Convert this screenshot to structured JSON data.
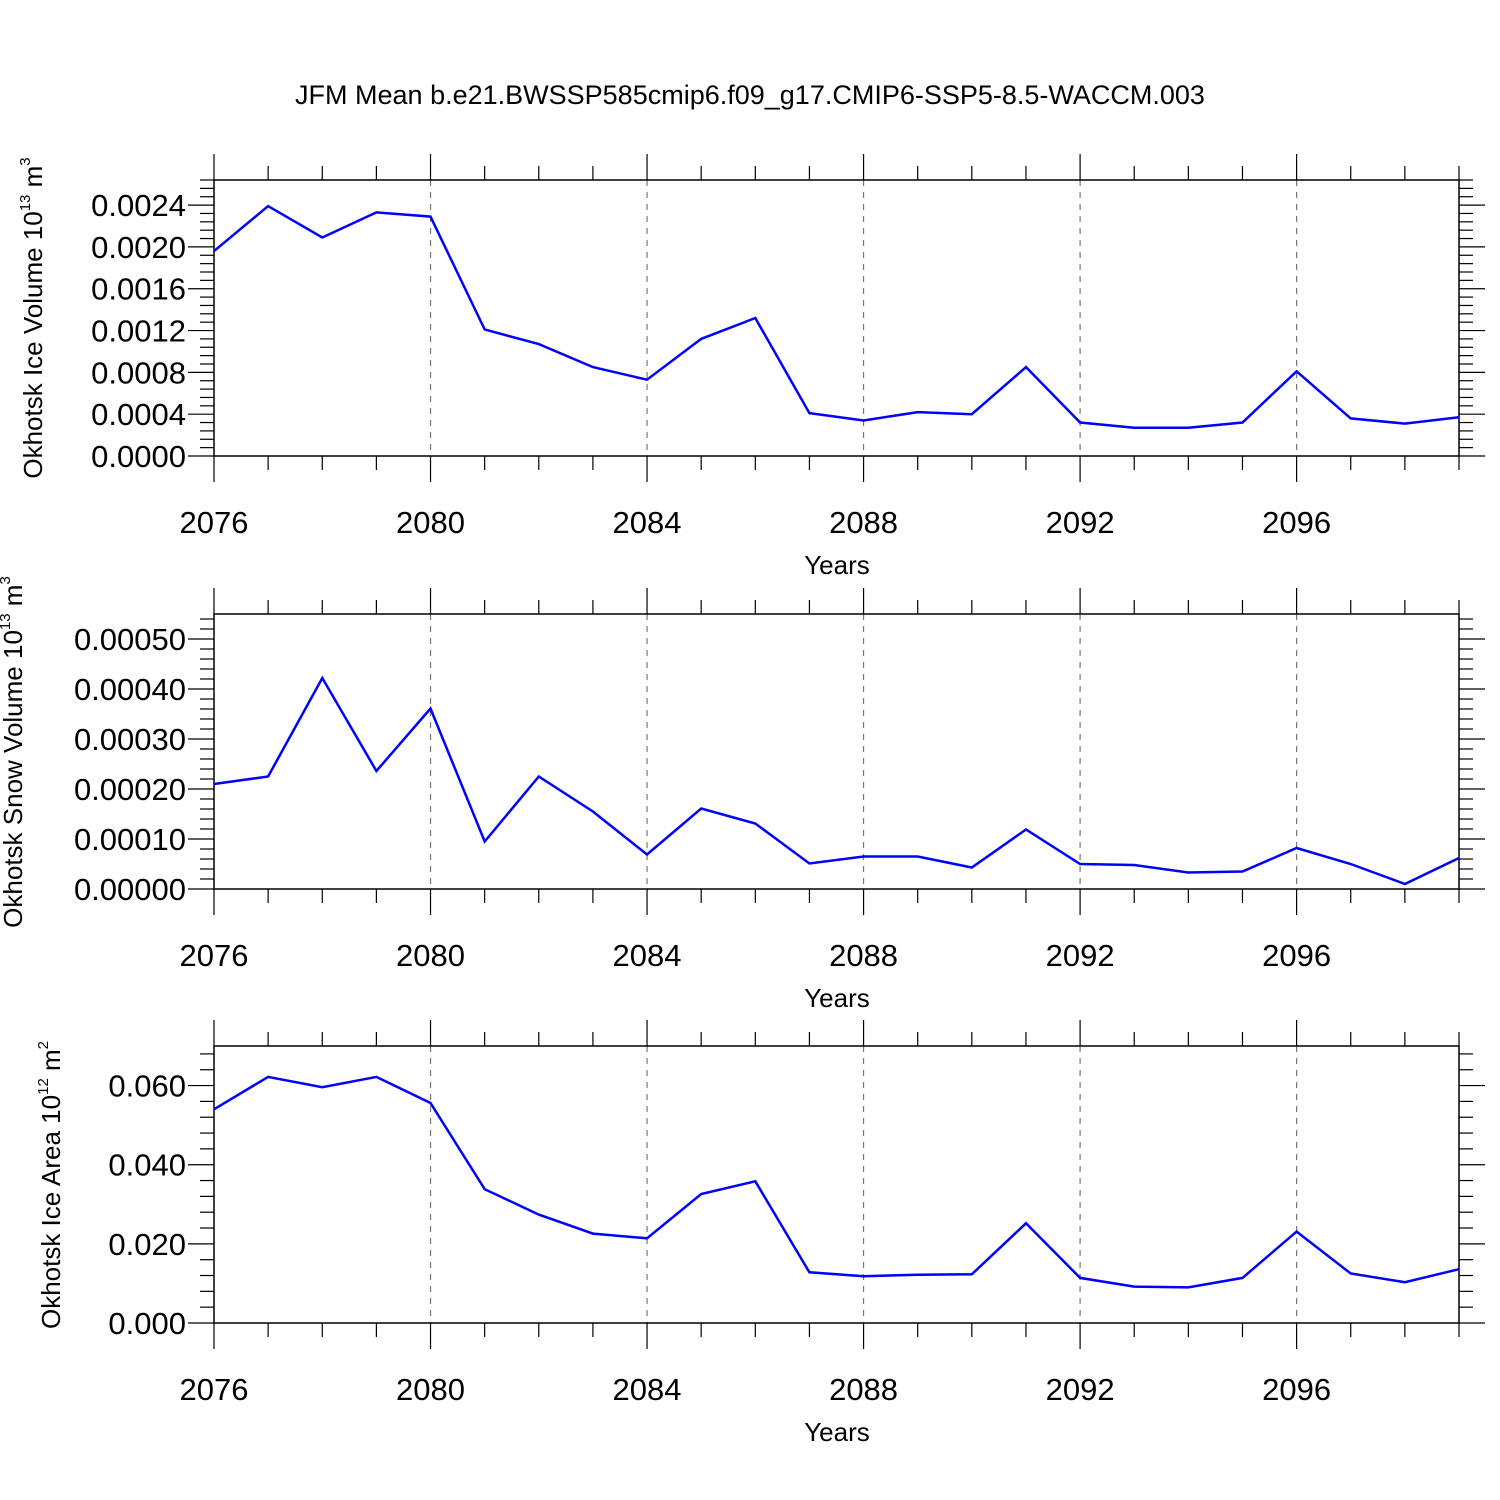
{
  "figure": {
    "title": "JFM Mean b.e21.BWSSP585cmip6.f09_g17.CMIP6-SSP5-8.5-WACCM.003"
  },
  "colors": {
    "line": "#0000ff",
    "axis": "#000000",
    "grid": "#777777"
  },
  "chart_data": [
    {
      "type": "line",
      "ylabel": {
        "main": "Okhotsk Ice Volume 10",
        "exp": "13",
        "unit": " m",
        "unit_exp": "3"
      },
      "xlabel": "Years",
      "xlim": [
        2076,
        2099
      ],
      "ylim": [
        0.0,
        0.00264
      ],
      "yticks": [
        0.0,
        0.0004,
        0.0008,
        0.0012,
        0.0016,
        0.002,
        0.0024
      ],
      "ytick_labels": [
        "0.0000",
        "0.0004",
        "0.0008",
        "0.0012",
        "0.0016",
        "0.0020",
        "0.0024"
      ],
      "xticks": [
        2076,
        2080,
        2084,
        2088,
        2092,
        2096
      ],
      "xtick_labels": [
        "2076",
        "2080",
        "2084",
        "2088",
        "2092",
        "2096"
      ],
      "grid": "vertical-dashed",
      "series": [
        {
          "name": "Okhotsk Ice Volume",
          "x": [
            2076,
            2077,
            2078,
            2079,
            2080,
            2081,
            2082,
            2083,
            2084,
            2085,
            2086,
            2087,
            2088,
            2089,
            2090,
            2091,
            2092,
            2093,
            2094,
            2095,
            2096,
            2097,
            2098,
            2099
          ],
          "values": [
            0.00196,
            0.00239,
            0.00209,
            0.00233,
            0.00229,
            0.00121,
            0.00107,
            0.00085,
            0.00073,
            0.00112,
            0.00132,
            0.00041,
            0.00034,
            0.00042,
            0.0004,
            0.00085,
            0.00032,
            0.00027,
            0.00027,
            0.00032,
            0.00081,
            0.00036,
            0.00031,
            0.00037
          ]
        }
      ]
    },
    {
      "type": "line",
      "ylabel": {
        "main": "Okhotsk Snow Volume 10",
        "exp": "13",
        "unit": " m",
        "unit_exp": "3"
      },
      "xlabel": "Years",
      "xlim": [
        2076,
        2099
      ],
      "ylim": [
        0.0,
        0.00055
      ],
      "yticks": [
        0.0,
        0.0001,
        0.0002,
        0.0003,
        0.0004,
        0.0005
      ],
      "ytick_labels": [
        "0.00000",
        "0.00010",
        "0.00020",
        "0.00030",
        "0.00040",
        "0.00050"
      ],
      "xticks": [
        2076,
        2080,
        2084,
        2088,
        2092,
        2096
      ],
      "xtick_labels": [
        "2076",
        "2080",
        "2084",
        "2088",
        "2092",
        "2096"
      ],
      "grid": "vertical-dashed",
      "series": [
        {
          "name": "Okhotsk Snow Volume",
          "x": [
            2076,
            2077,
            2078,
            2079,
            2080,
            2081,
            2082,
            2083,
            2084,
            2085,
            2086,
            2087,
            2088,
            2089,
            2090,
            2091,
            2092,
            2093,
            2094,
            2095,
            2096,
            2097,
            2098,
            2099
          ],
          "values": [
            0.00021,
            0.000225,
            0.000422,
            0.000236,
            0.000361,
            9.5e-05,
            0.000225,
            0.000155,
            6.9e-05,
            0.000161,
            0.000131,
            5.1e-05,
            6.5e-05,
            6.5e-05,
            4.3e-05,
            0.000119,
            5e-05,
            4.8e-05,
            3.3e-05,
            3.5e-05,
            8.2e-05,
            5e-05,
            1e-05,
            6.2e-05
          ]
        }
      ]
    },
    {
      "type": "line",
      "ylabel": {
        "main": "Okhotsk Ice Area 10",
        "exp": "12",
        "unit": " m",
        "unit_exp": "2"
      },
      "xlabel": "Years",
      "xlim": [
        2076,
        2099
      ],
      "ylim": [
        0.0,
        0.07
      ],
      "yticks": [
        0.0,
        0.02,
        0.04,
        0.06
      ],
      "ytick_labels": [
        "0.000",
        "0.020",
        "0.040",
        "0.060"
      ],
      "xticks": [
        2076,
        2080,
        2084,
        2088,
        2092,
        2096
      ],
      "xtick_labels": [
        "2076",
        "2080",
        "2084",
        "2088",
        "2092",
        "2096"
      ],
      "grid": "vertical-dashed",
      "series": [
        {
          "name": "Okhotsk Ice Area",
          "x": [
            2076,
            2077,
            2078,
            2079,
            2080,
            2081,
            2082,
            2083,
            2084,
            2085,
            2086,
            2087,
            2088,
            2089,
            2090,
            2091,
            2092,
            2093,
            2094,
            2095,
            2096,
            2097,
            2098,
            2099
          ],
          "values": [
            0.054,
            0.0622,
            0.0596,
            0.0622,
            0.0556,
            0.0338,
            0.0274,
            0.0226,
            0.0214,
            0.0326,
            0.0358,
            0.0128,
            0.0118,
            0.0122,
            0.0123,
            0.0252,
            0.0114,
            0.0092,
            0.009,
            0.0114,
            0.0231,
            0.0125,
            0.0103,
            0.0136
          ]
        }
      ]
    }
  ]
}
